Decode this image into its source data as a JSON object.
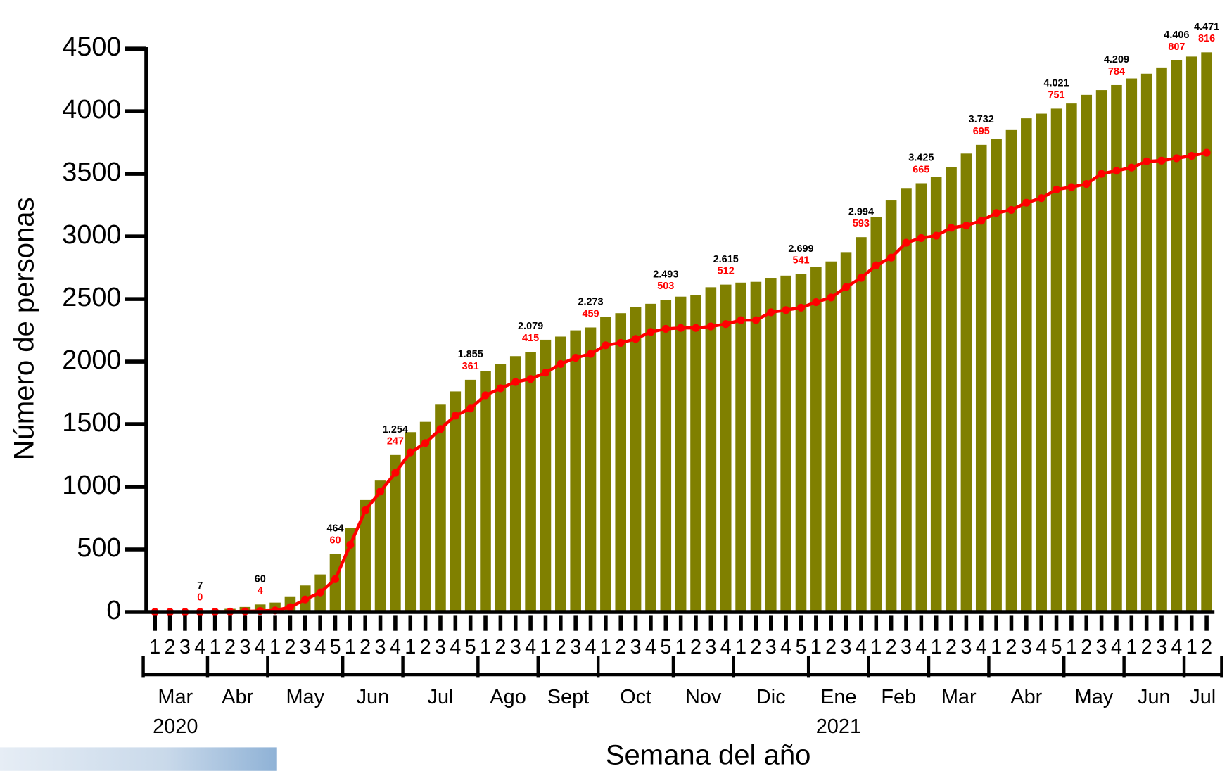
{
  "chart_data": {
    "type": "bar",
    "y_label": "Número de personas",
    "x_label": "Semana del año",
    "ylim": [
      0,
      4500
    ],
    "yticks": [
      0,
      500,
      1000,
      1500,
      2000,
      2500,
      3000,
      3500,
      4000,
      4500
    ],
    "categories": [
      "1",
      "2",
      "3",
      "4",
      "1",
      "2",
      "3",
      "4",
      "1",
      "2",
      "3",
      "4",
      "5",
      "1",
      "2",
      "3",
      "4",
      "1",
      "2",
      "3",
      "4",
      "5",
      "1",
      "2",
      "3",
      "4",
      "1",
      "2",
      "3",
      "4",
      "1",
      "2",
      "3",
      "4",
      "5",
      "1",
      "2",
      "3",
      "4",
      "1",
      "2",
      "3",
      "4",
      "5",
      "1",
      "2",
      "3",
      "4",
      "1",
      "2",
      "3",
      "4",
      "1",
      "2",
      "3",
      "4",
      "1",
      "2",
      "3",
      "4",
      "5",
      "1",
      "2",
      "3",
      "4",
      "1",
      "2",
      "3",
      "4",
      "1",
      "2"
    ],
    "months": [
      {
        "label": "Mar",
        "weeks": 4,
        "year": "2020"
      },
      {
        "label": "Abr",
        "weeks": 4
      },
      {
        "label": "May",
        "weeks": 5
      },
      {
        "label": "Jun",
        "weeks": 4
      },
      {
        "label": "Jul",
        "weeks": 5
      },
      {
        "label": "Ago",
        "weeks": 4
      },
      {
        "label": "Sept",
        "weeks": 4
      },
      {
        "label": "Oct",
        "weeks": 5
      },
      {
        "label": "Nov",
        "weeks": 4
      },
      {
        "label": "Dic",
        "weeks": 5
      },
      {
        "label": "Ene",
        "weeks": 4,
        "year": "2021"
      },
      {
        "label": "Feb",
        "weeks": 4
      },
      {
        "label": "Mar",
        "weeks": 4
      },
      {
        "label": "Abr",
        "weeks": 5
      },
      {
        "label": "May",
        "weeks": 4
      },
      {
        "label": "Jun",
        "weeks": 4
      },
      {
        "label": "Jul",
        "weeks": 2
      }
    ],
    "series": [
      {
        "type": "bar",
        "color": "#808000",
        "values": [
          1,
          2,
          4,
          7,
          15,
          25,
          40,
          60,
          75,
          125,
          212,
          300,
          464,
          669,
          894,
          1050,
          1254,
          1437,
          1519,
          1656,
          1762,
          1855,
          1925,
          1981,
          2044,
          2079,
          2175,
          2200,
          2250,
          2273,
          2356,
          2387,
          2437,
          2462,
          2493,
          2519,
          2531,
          2594,
          2615,
          2631,
          2637,
          2669,
          2687,
          2699,
          2756,
          2800,
          2875,
          2994,
          3156,
          3287,
          3387,
          3425,
          3475,
          3556,
          3662,
          3732,
          3781,
          3850,
          3944,
          3981,
          4021,
          4062,
          4131,
          4169,
          4209,
          4262,
          4300,
          4350,
          4406,
          4437,
          4471
        ],
        "value_labels": [
          null,
          null,
          null,
          "7",
          null,
          null,
          null,
          "60",
          null,
          null,
          null,
          null,
          "464",
          null,
          null,
          null,
          "1.254",
          null,
          null,
          null,
          null,
          "1.855",
          null,
          null,
          null,
          "2.079",
          null,
          null,
          null,
          "2.273",
          null,
          null,
          null,
          null,
          "2.493",
          null,
          null,
          null,
          "2.615",
          null,
          null,
          null,
          null,
          "2.699",
          null,
          null,
          null,
          "2.994",
          null,
          null,
          null,
          "3.425",
          null,
          null,
          null,
          "3.732",
          null,
          null,
          null,
          null,
          "4.021",
          null,
          null,
          null,
          "4.209",
          null,
          null,
          null,
          "4.406",
          null,
          "4.471"
        ]
      },
      {
        "type": "line",
        "color": "#ff0000",
        "values": [
          0,
          0,
          0,
          0,
          2,
          3,
          5,
          8,
          12,
          38,
          100,
          156,
          262,
          537,
          812,
          962,
          1112,
          1275,
          1350,
          1462,
          1569,
          1625,
          1731,
          1787,
          1837,
          1862,
          1912,
          1981,
          2031,
          2062,
          2131,
          2150,
          2181,
          2237,
          2262,
          2269,
          2269,
          2281,
          2300,
          2331,
          2331,
          2394,
          2412,
          2431,
          2475,
          2512,
          2594,
          2669,
          2769,
          2831,
          2950,
          2987,
          3006,
          3069,
          3087,
          3125,
          3187,
          3212,
          3269,
          3306,
          3375,
          3394,
          3419,
          3500,
          3525,
          3550,
          3600,
          3606,
          3625,
          3644,
          3669
        ]
      }
    ],
    "red_labels": [
      null,
      null,
      null,
      "0",
      null,
      null,
      null,
      "4",
      null,
      null,
      null,
      null,
      "60",
      null,
      null,
      null,
      "247",
      null,
      null,
      null,
      null,
      "361",
      null,
      null,
      null,
      "415",
      null,
      null,
      null,
      "459",
      null,
      null,
      null,
      null,
      "503",
      null,
      null,
      null,
      "512",
      null,
      null,
      null,
      null,
      "541",
      null,
      null,
      null,
      "593",
      null,
      null,
      null,
      "665",
      null,
      null,
      null,
      "695",
      null,
      null,
      null,
      null,
      "751",
      null,
      null,
      null,
      "784",
      null,
      null,
      null,
      "807",
      null,
      "816"
    ]
  }
}
